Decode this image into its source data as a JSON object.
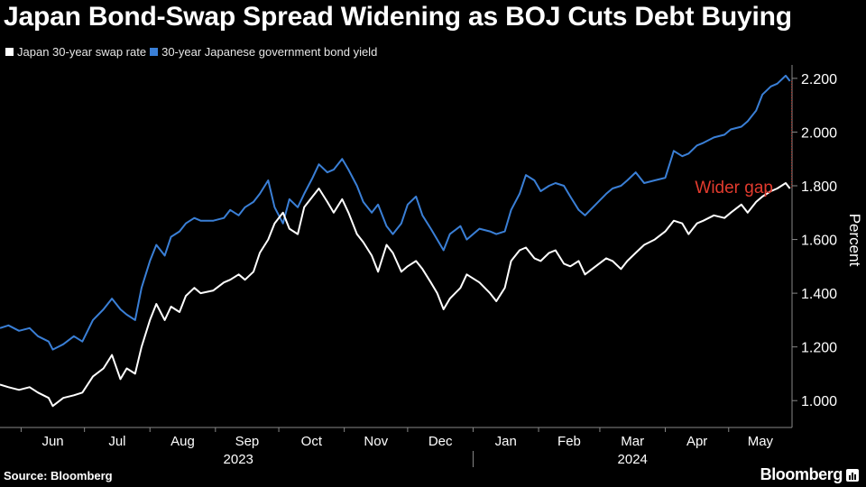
{
  "title": "Japan Bond-Swap Spread Widening as BOJ Cuts Debt Buying",
  "source": "Source: Bloomberg",
  "brand": "Bloomberg",
  "chart_data": {
    "type": "line",
    "x_type": "date",
    "x_range": [
      "2023-05-22",
      "2024-05-31"
    ],
    "y_label": "Percent",
    "y_range": [
      0.9,
      2.25
    ],
    "y_ticks": [
      "1.000",
      "1.200",
      "1.400",
      "1.600",
      "1.800",
      "2.000",
      "2.200"
    ],
    "x_ticks": [
      "Jun",
      "Jul",
      "Aug",
      "Sep",
      "Oct",
      "Nov",
      "Dec",
      "Jan",
      "Feb",
      "Mar",
      "Apr",
      "May"
    ],
    "year_labels": [
      "2023",
      "2024"
    ],
    "grid": false,
    "legend_position": "top-left",
    "annotation": {
      "text": "Wider gap",
      "color": "#e23b2e"
    },
    "series": [
      {
        "name": "Japan 30-year swap rate",
        "color": "#ffffff",
        "points": [
          [
            "2023-05-22",
            1.06
          ],
          [
            "2023-05-26",
            1.05
          ],
          [
            "2023-05-31",
            1.04
          ],
          [
            "2023-06-05",
            1.05
          ],
          [
            "2023-06-09",
            1.03
          ],
          [
            "2023-06-14",
            1.01
          ],
          [
            "2023-06-16",
            0.98
          ],
          [
            "2023-06-21",
            1.01
          ],
          [
            "2023-06-26",
            1.02
          ],
          [
            "2023-06-30",
            1.03
          ],
          [
            "2023-07-05",
            1.09
          ],
          [
            "2023-07-10",
            1.12
          ],
          [
            "2023-07-14",
            1.17
          ],
          [
            "2023-07-18",
            1.08
          ],
          [
            "2023-07-21",
            1.12
          ],
          [
            "2023-07-25",
            1.1
          ],
          [
            "2023-07-28",
            1.2
          ],
          [
            "2023-08-01",
            1.3
          ],
          [
            "2023-08-04",
            1.36
          ],
          [
            "2023-08-08",
            1.3
          ],
          [
            "2023-08-11",
            1.35
          ],
          [
            "2023-08-15",
            1.33
          ],
          [
            "2023-08-18",
            1.39
          ],
          [
            "2023-08-22",
            1.42
          ],
          [
            "2023-08-25",
            1.4
          ],
          [
            "2023-08-31",
            1.41
          ],
          [
            "2023-09-05",
            1.44
          ],
          [
            "2023-09-08",
            1.45
          ],
          [
            "2023-09-12",
            1.47
          ],
          [
            "2023-09-15",
            1.45
          ],
          [
            "2023-09-19",
            1.48
          ],
          [
            "2023-09-22",
            1.55
          ],
          [
            "2023-09-26",
            1.6
          ],
          [
            "2023-09-29",
            1.66
          ],
          [
            "2023-10-03",
            1.7
          ],
          [
            "2023-10-06",
            1.64
          ],
          [
            "2023-10-10",
            1.62
          ],
          [
            "2023-10-13",
            1.72
          ],
          [
            "2023-10-17",
            1.76
          ],
          [
            "2023-10-20",
            1.79
          ],
          [
            "2023-10-24",
            1.74
          ],
          [
            "2023-10-27",
            1.7
          ],
          [
            "2023-10-31",
            1.75
          ],
          [
            "2023-11-03",
            1.7
          ],
          [
            "2023-11-07",
            1.62
          ],
          [
            "2023-11-10",
            1.59
          ],
          [
            "2023-11-14",
            1.54
          ],
          [
            "2023-11-17",
            1.48
          ],
          [
            "2023-11-21",
            1.58
          ],
          [
            "2023-11-24",
            1.55
          ],
          [
            "2023-11-28",
            1.48
          ],
          [
            "2023-12-01",
            1.5
          ],
          [
            "2023-12-05",
            1.52
          ],
          [
            "2023-12-08",
            1.49
          ],
          [
            "2023-12-12",
            1.44
          ],
          [
            "2023-12-15",
            1.4
          ],
          [
            "2023-12-18",
            1.34
          ],
          [
            "2023-12-21",
            1.38
          ],
          [
            "2023-12-26",
            1.42
          ],
          [
            "2023-12-29",
            1.47
          ],
          [
            "2024-01-04",
            1.44
          ],
          [
            "2024-01-09",
            1.4
          ],
          [
            "2024-01-12",
            1.37
          ],
          [
            "2024-01-16",
            1.42
          ],
          [
            "2024-01-19",
            1.52
          ],
          [
            "2024-01-23",
            1.56
          ],
          [
            "2024-01-26",
            1.57
          ],
          [
            "2024-01-30",
            1.53
          ],
          [
            "2024-02-02",
            1.52
          ],
          [
            "2024-02-06",
            1.55
          ],
          [
            "2024-02-09",
            1.56
          ],
          [
            "2024-02-13",
            1.51
          ],
          [
            "2024-02-16",
            1.5
          ],
          [
            "2024-02-20",
            1.52
          ],
          [
            "2024-02-23",
            1.47
          ],
          [
            "2024-02-28",
            1.5
          ],
          [
            "2024-03-04",
            1.53
          ],
          [
            "2024-03-07",
            1.52
          ],
          [
            "2024-03-11",
            1.49
          ],
          [
            "2024-03-14",
            1.52
          ],
          [
            "2024-03-18",
            1.55
          ],
          [
            "2024-03-22",
            1.58
          ],
          [
            "2024-03-27",
            1.6
          ],
          [
            "2024-04-01",
            1.63
          ],
          [
            "2024-04-05",
            1.67
          ],
          [
            "2024-04-09",
            1.66
          ],
          [
            "2024-04-12",
            1.62
          ],
          [
            "2024-04-16",
            1.66
          ],
          [
            "2024-04-19",
            1.67
          ],
          [
            "2024-04-24",
            1.69
          ],
          [
            "2024-04-29",
            1.68
          ],
          [
            "2024-05-02",
            1.7
          ],
          [
            "2024-05-07",
            1.73
          ],
          [
            "2024-05-10",
            1.7
          ],
          [
            "2024-05-14",
            1.74
          ],
          [
            "2024-05-17",
            1.76
          ],
          [
            "2024-05-21",
            1.78
          ],
          [
            "2024-05-24",
            1.79
          ],
          [
            "2024-05-28",
            1.81
          ],
          [
            "2024-05-30",
            1.79
          ]
        ]
      },
      {
        "name": "30-year Japanese government bond yield",
        "color": "#3a7fd6",
        "points": [
          [
            "2023-05-22",
            1.27
          ],
          [
            "2023-05-26",
            1.28
          ],
          [
            "2023-05-31",
            1.26
          ],
          [
            "2023-06-05",
            1.27
          ],
          [
            "2023-06-09",
            1.24
          ],
          [
            "2023-06-14",
            1.22
          ],
          [
            "2023-06-16",
            1.19
          ],
          [
            "2023-06-21",
            1.21
          ],
          [
            "2023-06-26",
            1.24
          ],
          [
            "2023-06-30",
            1.22
          ],
          [
            "2023-07-05",
            1.3
          ],
          [
            "2023-07-10",
            1.34
          ],
          [
            "2023-07-14",
            1.38
          ],
          [
            "2023-07-18",
            1.34
          ],
          [
            "2023-07-21",
            1.32
          ],
          [
            "2023-07-25",
            1.3
          ],
          [
            "2023-07-28",
            1.42
          ],
          [
            "2023-08-01",
            1.52
          ],
          [
            "2023-08-04",
            1.58
          ],
          [
            "2023-08-08",
            1.54
          ],
          [
            "2023-08-11",
            1.61
          ],
          [
            "2023-08-15",
            1.63
          ],
          [
            "2023-08-18",
            1.66
          ],
          [
            "2023-08-22",
            1.68
          ],
          [
            "2023-08-25",
            1.67
          ],
          [
            "2023-08-31",
            1.67
          ],
          [
            "2023-09-05",
            1.68
          ],
          [
            "2023-09-08",
            1.71
          ],
          [
            "2023-09-12",
            1.69
          ],
          [
            "2023-09-15",
            1.72
          ],
          [
            "2023-09-19",
            1.74
          ],
          [
            "2023-09-22",
            1.77
          ],
          [
            "2023-09-26",
            1.82
          ],
          [
            "2023-09-29",
            1.72
          ],
          [
            "2023-10-03",
            1.66
          ],
          [
            "2023-10-06",
            1.75
          ],
          [
            "2023-10-10",
            1.72
          ],
          [
            "2023-10-13",
            1.77
          ],
          [
            "2023-10-17",
            1.83
          ],
          [
            "2023-10-20",
            1.88
          ],
          [
            "2023-10-24",
            1.85
          ],
          [
            "2023-10-27",
            1.86
          ],
          [
            "2023-10-31",
            1.9
          ],
          [
            "2023-11-03",
            1.86
          ],
          [
            "2023-11-07",
            1.8
          ],
          [
            "2023-11-10",
            1.74
          ],
          [
            "2023-11-14",
            1.7
          ],
          [
            "2023-11-17",
            1.73
          ],
          [
            "2023-11-21",
            1.65
          ],
          [
            "2023-11-24",
            1.62
          ],
          [
            "2023-11-28",
            1.66
          ],
          [
            "2023-12-01",
            1.73
          ],
          [
            "2023-12-05",
            1.76
          ],
          [
            "2023-12-08",
            1.69
          ],
          [
            "2023-12-12",
            1.64
          ],
          [
            "2023-12-15",
            1.6
          ],
          [
            "2023-12-18",
            1.56
          ],
          [
            "2023-12-21",
            1.62
          ],
          [
            "2023-12-26",
            1.65
          ],
          [
            "2023-12-29",
            1.6
          ],
          [
            "2024-01-04",
            1.64
          ],
          [
            "2024-01-09",
            1.63
          ],
          [
            "2024-01-12",
            1.62
          ],
          [
            "2024-01-16",
            1.63
          ],
          [
            "2024-01-19",
            1.71
          ],
          [
            "2024-01-23",
            1.77
          ],
          [
            "2024-01-26",
            1.84
          ],
          [
            "2024-01-30",
            1.82
          ],
          [
            "2024-02-02",
            1.78
          ],
          [
            "2024-02-06",
            1.8
          ],
          [
            "2024-02-09",
            1.81
          ],
          [
            "2024-02-13",
            1.8
          ],
          [
            "2024-02-16",
            1.76
          ],
          [
            "2024-02-20",
            1.71
          ],
          [
            "2024-02-23",
            1.69
          ],
          [
            "2024-02-28",
            1.73
          ],
          [
            "2024-03-04",
            1.77
          ],
          [
            "2024-03-07",
            1.79
          ],
          [
            "2024-03-11",
            1.8
          ],
          [
            "2024-03-14",
            1.82
          ],
          [
            "2024-03-18",
            1.85
          ],
          [
            "2024-03-22",
            1.81
          ],
          [
            "2024-03-27",
            1.82
          ],
          [
            "2024-04-01",
            1.83
          ],
          [
            "2024-04-05",
            1.93
          ],
          [
            "2024-04-09",
            1.91
          ],
          [
            "2024-04-12",
            1.92
          ],
          [
            "2024-04-16",
            1.95
          ],
          [
            "2024-04-19",
            1.96
          ],
          [
            "2024-04-24",
            1.98
          ],
          [
            "2024-04-29",
            1.99
          ],
          [
            "2024-05-02",
            2.01
          ],
          [
            "2024-05-07",
            2.02
          ],
          [
            "2024-05-10",
            2.04
          ],
          [
            "2024-05-14",
            2.08
          ],
          [
            "2024-05-17",
            2.14
          ],
          [
            "2024-05-21",
            2.17
          ],
          [
            "2024-05-24",
            2.18
          ],
          [
            "2024-05-28",
            2.21
          ],
          [
            "2024-05-30",
            2.19
          ]
        ]
      }
    ]
  }
}
